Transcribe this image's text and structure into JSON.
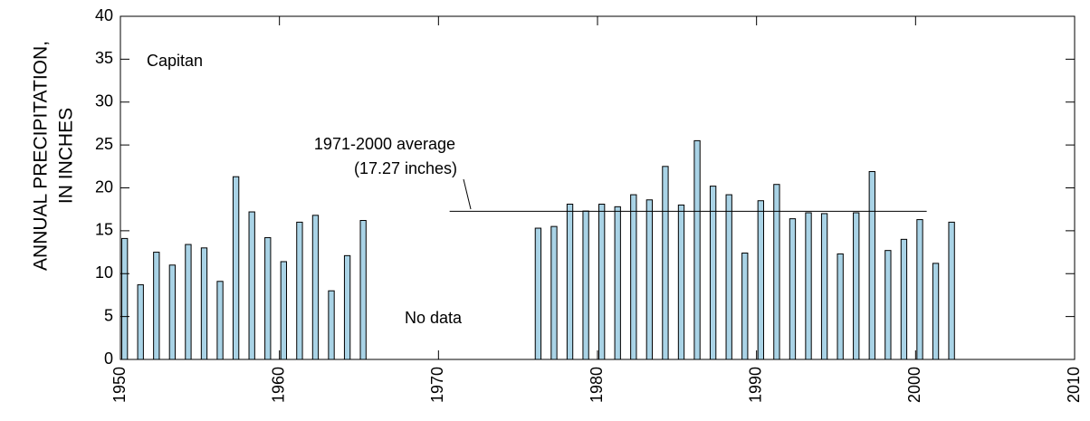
{
  "chart_data": {
    "type": "bar",
    "ylabel": [
      "ANNUAL PRECIPITATION,",
      "IN INCHES"
    ],
    "annotations": [
      "Capitan",
      "No data"
    ],
    "average": {
      "label": "1971-2000 average",
      "value": 17.27,
      "value_label": "(17.27 inches)",
      "x": [
        1970.7,
        2000.7
      ]
    },
    "x": [
      1950,
      1951,
      1952,
      1953,
      1954,
      1955,
      1956,
      1957,
      1958,
      1959,
      1960,
      1961,
      1962,
      1963,
      1964,
      1965,
      1976,
      1977,
      1978,
      1979,
      1980,
      1981,
      1982,
      1983,
      1984,
      1985,
      1986,
      1987,
      1988,
      1989,
      1990,
      1991,
      1992,
      1993,
      1994,
      1995,
      1996,
      1997,
      1998,
      1999,
      2000,
      2001,
      2002
    ],
    "values": [
      14.1,
      8.7,
      12.5,
      11.0,
      13.4,
      13.0,
      9.1,
      21.3,
      17.2,
      14.2,
      11.4,
      16.0,
      16.8,
      8.0,
      12.1,
      16.2,
      15.3,
      15.5,
      18.1,
      17.3,
      18.1,
      17.8,
      19.2,
      18.6,
      22.5,
      18.0,
      25.5,
      20.2,
      19.2,
      12.4,
      18.5,
      20.4,
      16.4,
      17.1,
      17.0,
      12.3,
      17.1,
      21.9,
      12.7,
      14.0,
      16.3,
      11.2,
      16.0
    ],
    "color": "#a9d3e6",
    "xlim": [
      1950,
      2010
    ],
    "xticks": [
      1950,
      1960,
      1970,
      1980,
      1990,
      2000,
      2010
    ],
    "ylim": [
      0,
      40
    ],
    "yticks": [
      0,
      5,
      10,
      15,
      20,
      25,
      30,
      35,
      40
    ]
  }
}
